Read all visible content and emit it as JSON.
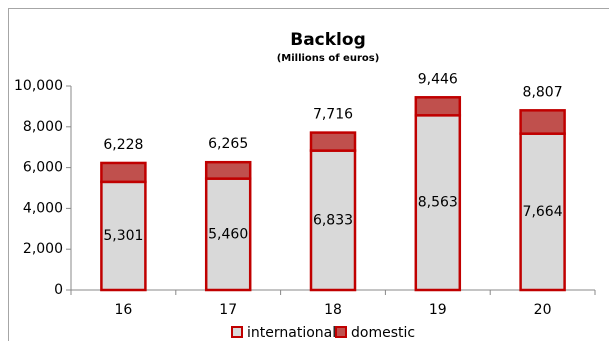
{
  "chart_data": {
    "type": "stacked-bar",
    "title": "Backlog",
    "subtitle": "(Millions of euros)",
    "categories": [
      "16",
      "17",
      "18",
      "19",
      "20"
    ],
    "series": [
      {
        "name": "international",
        "color": "#d9d9d9",
        "values": [
          5301,
          5460,
          6833,
          8563,
          7664
        ],
        "value_labels": [
          "5,301",
          "5,460",
          "6,833",
          "8,563",
          "7,664"
        ]
      },
      {
        "name": "domestic",
        "color": "#c0504d",
        "values": [
          927,
          805,
          883,
          883,
          1143
        ]
      }
    ],
    "totals": [
      6228,
      6265,
      7716,
      9446,
      8807
    ],
    "total_labels": [
      "6,228",
      "6,265",
      "7,716",
      "9,446",
      "8,807"
    ],
    "edge_color": "#c00000",
    "ylim": [
      0,
      10000
    ],
    "yticks": [
      0,
      {
        "value": 2000,
        "label": "2,000"
      },
      {
        "value": 4000,
        "label": "4,000"
      },
      {
        "value": 6000,
        "label": "6,000"
      },
      {
        "value": 8000,
        "label": "8,000"
      },
      {
        "value": 10000,
        "label": "10,000"
      }
    ],
    "grid": false,
    "legend": "bottom"
  }
}
